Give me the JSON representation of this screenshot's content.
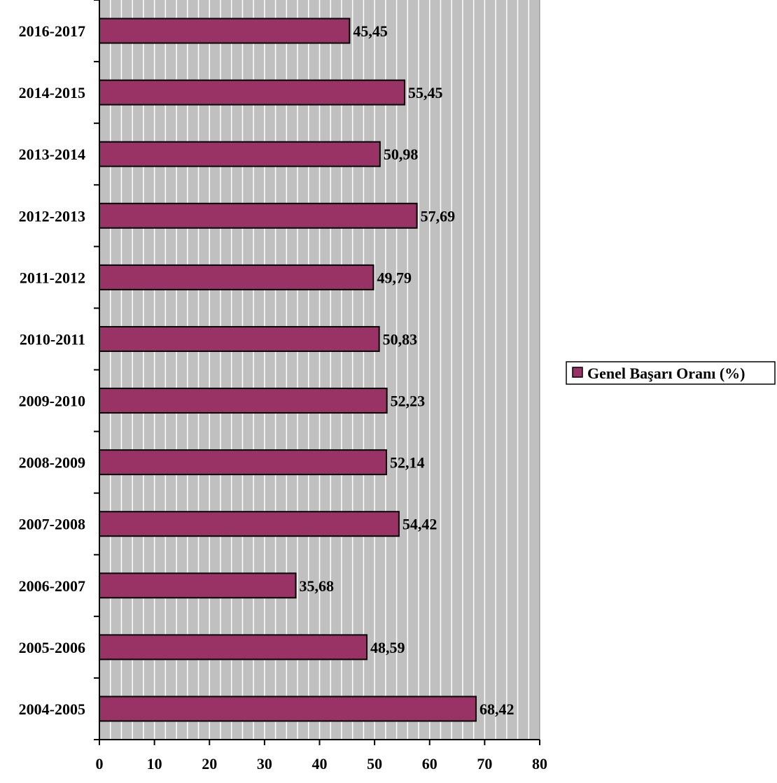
{
  "chart_data": {
    "type": "bar",
    "orientation": "horizontal",
    "categories": [
      "2004-2005",
      "2005-2006",
      "2006-2007",
      "2007-2008",
      "2008-2009",
      "2009-2010",
      "2010-2011",
      "2011-2012",
      "2012-2013",
      "2013-2014",
      "2014-2015",
      "2016-2017"
    ],
    "series": [
      {
        "name": "Genel Başarı Oranı (%)",
        "values": [
          68.42,
          48.59,
          35.68,
          54.42,
          52.14,
          52.23,
          50.83,
          49.79,
          57.69,
          50.98,
          55.45,
          45.45
        ],
        "value_labels": [
          "68,42",
          "48,59",
          "35,68",
          "54,42",
          "52,14",
          "52,23",
          "50,83",
          "49,79",
          "57,69",
          "50,98",
          "55,45",
          "45,45"
        ]
      }
    ],
    "xlim": [
      0,
      80
    ],
    "x_ticks": [
      0,
      10,
      20,
      30,
      40,
      50,
      60,
      70,
      80
    ],
    "x_tick_labels": [
      "0",
      "10",
      "20",
      "30",
      "40",
      "50",
      "60",
      "70",
      "80"
    ],
    "minor_grid_step": 2,
    "grid": true,
    "legend_position": "right",
    "colors": {
      "bar_fill": "#993366",
      "plot_background": "#c0c0c0",
      "grid_line": "#ffffff",
      "bar_stroke": "#000000"
    }
  }
}
